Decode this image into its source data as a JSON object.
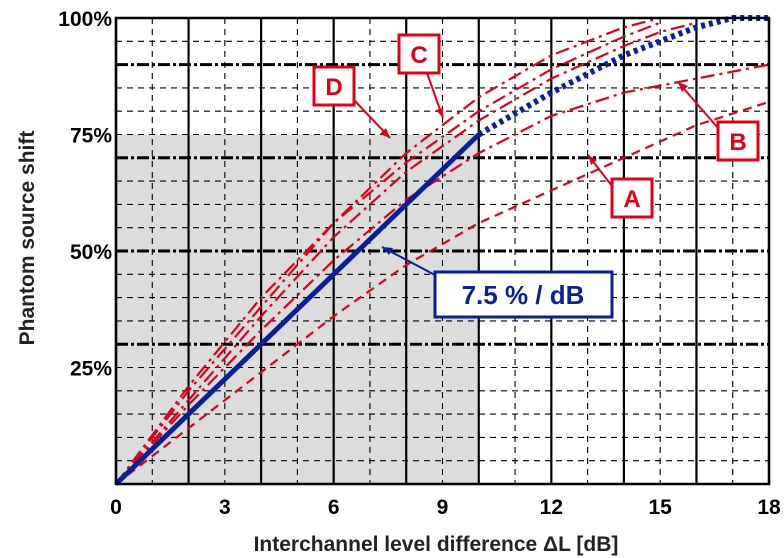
{
  "chart_data": {
    "type": "line",
    "xlabel": "Interchannel level difference ΔL  [dB]",
    "ylabel": "Phantom source shift",
    "xlim": [
      0,
      18
    ],
    "ylim": [
      0,
      100
    ],
    "xticks": [
      0,
      3,
      6,
      9,
      12,
      15,
      18
    ],
    "xtick_labels": [
      "0",
      "3",
      "6",
      "9",
      "12",
      "15",
      "18"
    ],
    "yticks": [
      25,
      50,
      75,
      100
    ],
    "ytick_labels": [
      "25%",
      "50%",
      "75%",
      "100%"
    ],
    "grid": true,
    "shaded_region": {
      "x": [
        0,
        10
      ],
      "y": [
        0,
        75
      ]
    },
    "series": [
      {
        "name": "A",
        "color": "#e0001a",
        "style": "dashed",
        "points": [
          [
            0,
            0
          ],
          [
            2,
            12
          ],
          [
            4,
            24
          ],
          [
            6,
            36
          ],
          [
            8,
            47
          ],
          [
            10,
            56
          ],
          [
            12,
            63
          ],
          [
            14,
            70
          ],
          [
            16,
            77
          ],
          [
            18,
            82
          ]
        ]
      },
      {
        "name": "B",
        "color": "#e0001a",
        "style": "dashdot",
        "points": [
          [
            0,
            0
          ],
          [
            2,
            17
          ],
          [
            4,
            33
          ],
          [
            6,
            48
          ],
          [
            8,
            61
          ],
          [
            10,
            71
          ],
          [
            12,
            79
          ],
          [
            14,
            84
          ],
          [
            16,
            87
          ],
          [
            18,
            90
          ]
        ]
      },
      {
        "name": "C",
        "color": "#e0001a",
        "style": "dashdot",
        "points": [
          [
            0,
            0
          ],
          [
            2,
            18
          ],
          [
            4,
            36
          ],
          [
            6,
            53
          ],
          [
            8,
            67
          ],
          [
            10,
            78
          ],
          [
            12,
            87
          ],
          [
            14,
            94
          ],
          [
            15,
            97
          ],
          [
            16,
            99
          ]
        ]
      },
      {
        "name": "D",
        "color": "#e0001a",
        "style": "dashdot",
        "points": [
          [
            0,
            0
          ],
          [
            2,
            20
          ],
          [
            4,
            38
          ],
          [
            6,
            56
          ],
          [
            8,
            71
          ],
          [
            10,
            83
          ],
          [
            12,
            92
          ],
          [
            14,
            98
          ],
          [
            15,
            100
          ]
        ]
      },
      {
        "color": "#e0001a",
        "style": "dashdot",
        "points": [
          [
            0,
            0
          ],
          [
            2,
            21
          ],
          [
            4,
            40
          ],
          [
            6,
            56
          ],
          [
            8,
            69
          ],
          [
            10,
            80
          ],
          [
            12,
            89
          ],
          [
            14,
            96
          ],
          [
            15,
            99
          ]
        ]
      },
      {
        "color": "#0a1f9e",
        "style": "solid",
        "points": [
          [
            0,
            0
          ],
          [
            10,
            75
          ]
        ]
      },
      {
        "color": "#0a1f9e",
        "style": "dotted",
        "points": [
          [
            10,
            75
          ],
          [
            12,
            84
          ],
          [
            14,
            92
          ],
          [
            16,
            98
          ],
          [
            17,
            100
          ],
          [
            18,
            100
          ]
        ]
      }
    ],
    "annotations": [
      {
        "label": "A",
        "x": 14.2,
        "y": 64
      },
      {
        "label": "B",
        "x": 16.3,
        "y": 76.5
      },
      {
        "label": "C",
        "x": 10.8,
        "y": 93
      },
      {
        "label": "D",
        "x": 8.5,
        "y": 85.5
      },
      {
        "label": "7.5 % / dB",
        "x": 13.2,
        "y": 43.5
      }
    ]
  }
}
